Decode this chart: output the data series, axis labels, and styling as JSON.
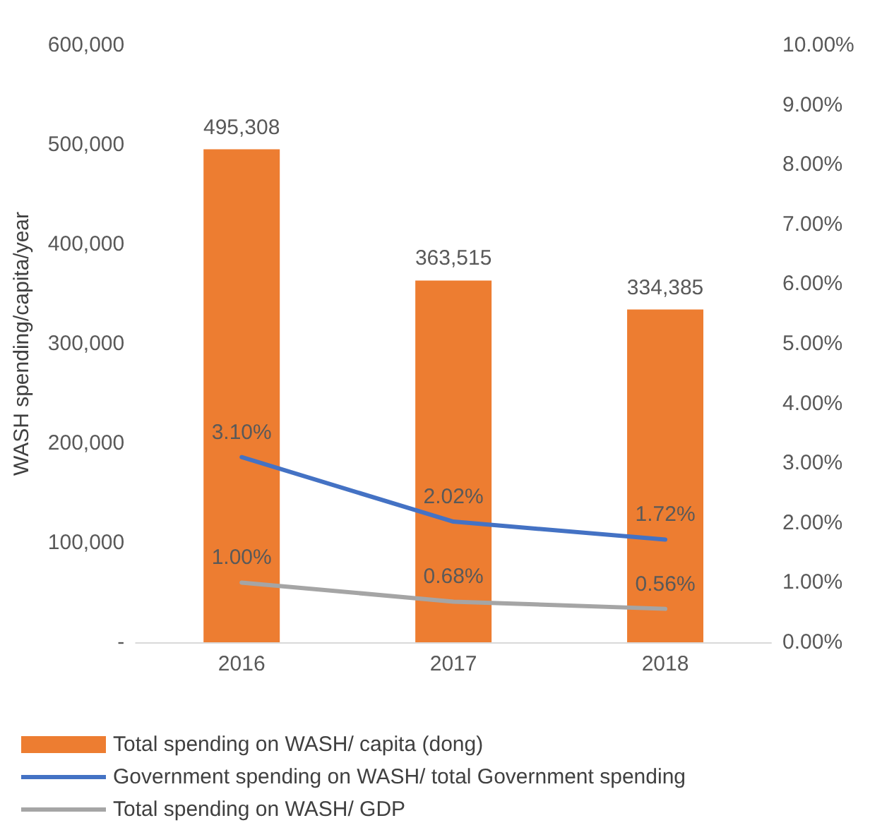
{
  "chart_data": {
    "type": "bar",
    "ylabel": "WASH spending/capita/year",
    "categories": [
      "2016",
      "2017",
      "2018"
    ],
    "series": [
      {
        "name": "Total spending on WASH/ capita (dong)",
        "color": "#ed7d31",
        "values": [
          495308,
          363515,
          334385
        ],
        "value_labels": [
          "495,308",
          "363,515",
          "334,385"
        ]
      },
      {
        "name": "Government spending on WASH/ total Government spending",
        "type": "line",
        "axis": "y2",
        "color": "#4472c4",
        "values": [
          3.1,
          2.02,
          1.72
        ],
        "value_labels": [
          "3.10%",
          "2.02%",
          "1.72%"
        ]
      },
      {
        "name": "Total spending on WASH/ GDP",
        "type": "line",
        "axis": "y2",
        "color": "#a5a5a5",
        "values": [
          1.0,
          0.68,
          0.56
        ],
        "value_labels": [
          "1.00%",
          "0.68%",
          "0.56%"
        ]
      }
    ],
    "ylim": [
      0,
      600000
    ],
    "yticks": [
      {
        "value": 0,
        "label": "-"
      },
      {
        "value": 100000,
        "label": "100,000"
      },
      {
        "value": 200000,
        "label": "200,000"
      },
      {
        "value": 300000,
        "label": "300,000"
      },
      {
        "value": 400000,
        "label": "400,000"
      },
      {
        "value": 500000,
        "label": "500,000"
      },
      {
        "value": 600000,
        "label": "600,000"
      }
    ],
    "y2lim": [
      0,
      10
    ],
    "y2ticks": [
      {
        "value": 0,
        "label": "0.00%"
      },
      {
        "value": 1,
        "label": "1.00%"
      },
      {
        "value": 2,
        "label": "2.00%"
      },
      {
        "value": 3,
        "label": "3.00%"
      },
      {
        "value": 4,
        "label": "4.00%"
      },
      {
        "value": 5,
        "label": "5.00%"
      },
      {
        "value": 6,
        "label": "6.00%"
      },
      {
        "value": 7,
        "label": "7.00%"
      },
      {
        "value": 8,
        "label": "8.00%"
      },
      {
        "value": 9,
        "label": "9.00%"
      },
      {
        "value": 10,
        "label": "10.00%"
      }
    ],
    "grid": false,
    "legend": "bottom",
    "line_style": "solid",
    "marker": "none"
  }
}
